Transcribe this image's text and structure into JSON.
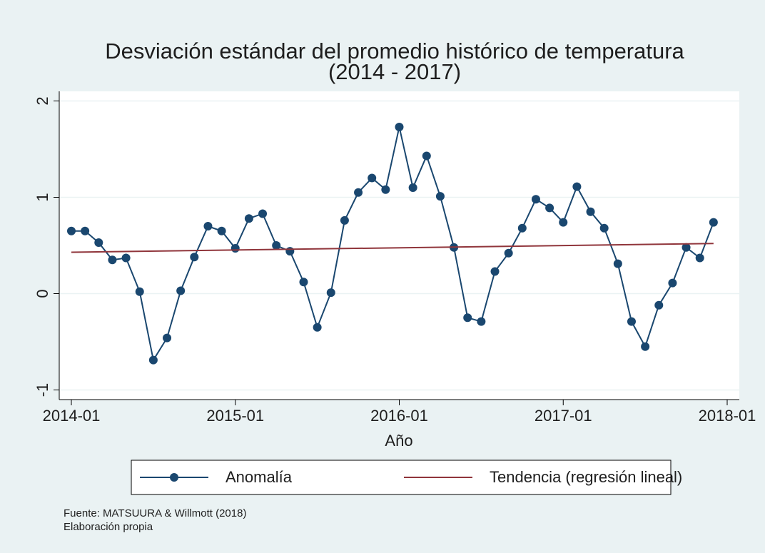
{
  "chart_data": {
    "type": "line",
    "title": [
      "Desviación estándar del promedio histórico de temperatura",
      "(2014 - 2017)"
    ],
    "x_label": "Año",
    "series": [
      {
        "name": "Anomalía",
        "color": "#1a476f",
        "markers": true,
        "x": [
          "2014-01",
          "2014-02",
          "2014-03",
          "2014-04",
          "2014-05",
          "2014-06",
          "2014-07",
          "2014-08",
          "2014-09",
          "2014-10",
          "2014-11",
          "2014-12",
          "2015-01",
          "2015-02",
          "2015-03",
          "2015-04",
          "2015-05",
          "2015-06",
          "2015-07",
          "2015-08",
          "2015-09",
          "2015-10",
          "2015-11",
          "2015-12",
          "2016-01",
          "2016-02",
          "2016-03",
          "2016-04",
          "2016-05",
          "2016-06",
          "2016-07",
          "2016-08",
          "2016-09",
          "2016-10",
          "2016-11",
          "2016-12",
          "2017-01",
          "2017-02",
          "2017-03",
          "2017-04",
          "2017-05",
          "2017-06",
          "2017-07",
          "2017-08",
          "2017-09",
          "2017-10",
          "2017-11",
          "2017-12"
        ],
        "values": [
          0.65,
          0.65,
          0.53,
          0.35,
          0.37,
          0.02,
          -0.69,
          -0.46,
          0.03,
          0.38,
          0.7,
          0.65,
          0.47,
          0.78,
          0.83,
          0.5,
          0.44,
          0.12,
          -0.35,
          0.01,
          0.76,
          1.05,
          1.2,
          1.08,
          1.73,
          1.1,
          1.43,
          1.01,
          0.48,
          -0.25,
          -0.29,
          0.23,
          0.42,
          0.68,
          0.98,
          0.89,
          0.74,
          1.11,
          0.85,
          0.68,
          0.31,
          -0.29,
          -0.55,
          -0.12,
          0.11,
          0.48,
          0.37,
          0.74
        ]
      },
      {
        "name": "Tendencia (regresión lineal)",
        "color": "#90353b",
        "markers": false,
        "x": [
          "2014-01",
          "2017-12"
        ],
        "values": [
          0.43,
          0.52
        ]
      }
    ],
    "xlim": [
      "2014-01",
      "2018-01"
    ],
    "xticks": [
      "2014-01",
      "2015-01",
      "2016-01",
      "2017-01",
      "2018-01"
    ],
    "ylim": [
      -1.1,
      2.1
    ],
    "yticks": [
      -1,
      0,
      1,
      2
    ],
    "grid": true,
    "legend": "bottom",
    "notes": [
      "Fuente: MATSUURA & Willmott (2018)",
      "Elaboración propia"
    ]
  }
}
